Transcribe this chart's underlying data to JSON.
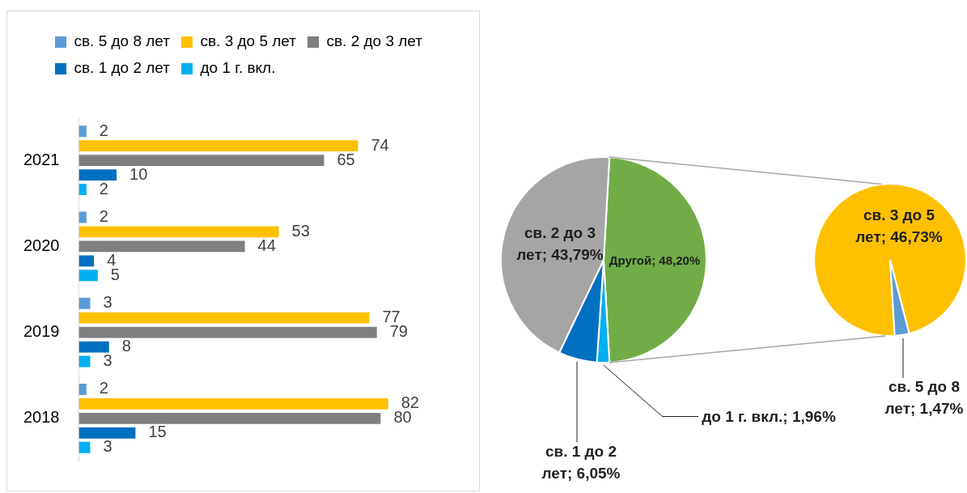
{
  "chart_data": [
    {
      "type": "bar",
      "orientation": "horizontal",
      "categories": [
        "2021",
        "2020",
        "2019",
        "2018"
      ],
      "series": [
        {
          "name": "св. 5 до 8 лет",
          "color": "#5b9bd5",
          "values": [
            2,
            2,
            3,
            2
          ]
        },
        {
          "name": "св. 3 до 5 лет",
          "color": "#ffc000",
          "values": [
            74,
            53,
            77,
            82
          ]
        },
        {
          "name": "св. 2 до 3 лет",
          "color": "#7f7f7f",
          "values": [
            65,
            44,
            79,
            80
          ]
        },
        {
          "name": "св. 1 до 2 лет",
          "color": "#0070c0",
          "values": [
            10,
            4,
            8,
            15
          ]
        },
        {
          "name": "до 1 г. вкл.",
          "color": "#00b0f0",
          "values": [
            2,
            5,
            3,
            3
          ]
        }
      ],
      "data_labels": true,
      "legend": "top"
    },
    {
      "type": "pie",
      "categories": [
        "Другой",
        "до 1 г. вкл.",
        "св. 1 до 2 лет",
        "св. 2 до 3 лет"
      ],
      "values": [
        48.2,
        1.96,
        6.05,
        43.79
      ],
      "colors": [
        "#70ad47",
        "#00b0f0",
        "#0070c0",
        "#a5a5a5"
      ],
      "value_labels": [
        "48,20%",
        "1,96%",
        "6,05%",
        "43,79%"
      ]
    },
    {
      "type": "pie",
      "categories": [
        "св. 3 до 5 лет",
        "св. 5 до 8 лет"
      ],
      "values": [
        46.73,
        1.47
      ],
      "colors": [
        "#ffc000",
        "#5b9bd5"
      ],
      "value_labels": [
        "46,73%",
        "1,47%"
      ]
    }
  ]
}
